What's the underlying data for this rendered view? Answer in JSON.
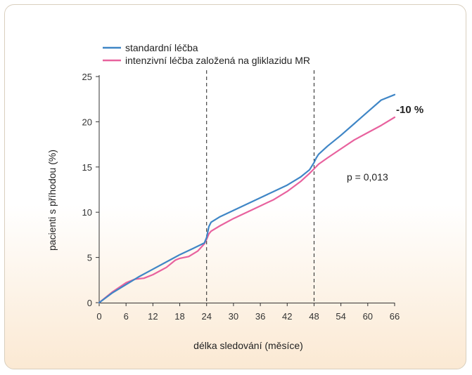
{
  "colors": {
    "standard": "#3f86c6",
    "intensive": "#e8629e",
    "axis": "#333333"
  },
  "chart_data": {
    "type": "line",
    "xlabel": "délka sledování (měsíce)",
    "ylabel": "pacienti s příhodou (%)",
    "xlim": [
      0,
      66
    ],
    "ylim": [
      0,
      25
    ],
    "xticks": [
      0,
      6,
      12,
      18,
      24,
      30,
      36,
      42,
      48,
      54,
      60,
      66
    ],
    "yticks": [
      0,
      5,
      10,
      15,
      20,
      25
    ],
    "vlines": [
      24,
      48
    ],
    "legend_position": "top-left",
    "annotations": {
      "reduction": "-10 %",
      "pvalue": "p = 0,013"
    },
    "series": [
      {
        "name": "standardní léčba",
        "x": [
          0,
          3,
          6,
          9,
          12,
          15,
          18,
          21,
          23.5,
          24,
          24.5,
          25,
          27,
          30,
          33,
          36,
          39,
          42,
          45,
          47,
          48,
          48.5,
          49,
          51,
          54,
          57,
          60,
          63,
          66
        ],
        "y": [
          0,
          1.1,
          2.0,
          2.9,
          3.7,
          4.5,
          5.3,
          6.0,
          6.6,
          7.2,
          8.4,
          8.9,
          9.5,
          10.2,
          10.9,
          11.6,
          12.3,
          13.0,
          13.9,
          14.7,
          15.5,
          16.0,
          16.4,
          17.3,
          18.5,
          19.8,
          21.1,
          22.4,
          23.0
        ]
      },
      {
        "name": "intenzivní léčba založená na gliklazidu MR",
        "x": [
          0,
          3,
          6,
          8,
          10,
          12,
          15,
          17,
          18,
          20,
          22,
          23.5,
          24,
          24.5,
          25,
          27,
          30,
          33,
          36,
          39,
          42,
          45,
          47,
          48,
          49,
          51,
          54,
          57,
          60,
          63,
          66
        ],
        "y": [
          0,
          1.2,
          2.2,
          2.6,
          2.7,
          3.1,
          3.9,
          4.7,
          4.9,
          5.1,
          5.7,
          6.5,
          7.0,
          7.6,
          7.9,
          8.5,
          9.3,
          10.0,
          10.7,
          11.4,
          12.3,
          13.4,
          14.3,
          14.8,
          15.3,
          16.0,
          17.0,
          18.0,
          18.8,
          19.6,
          20.5
        ]
      }
    ]
  }
}
